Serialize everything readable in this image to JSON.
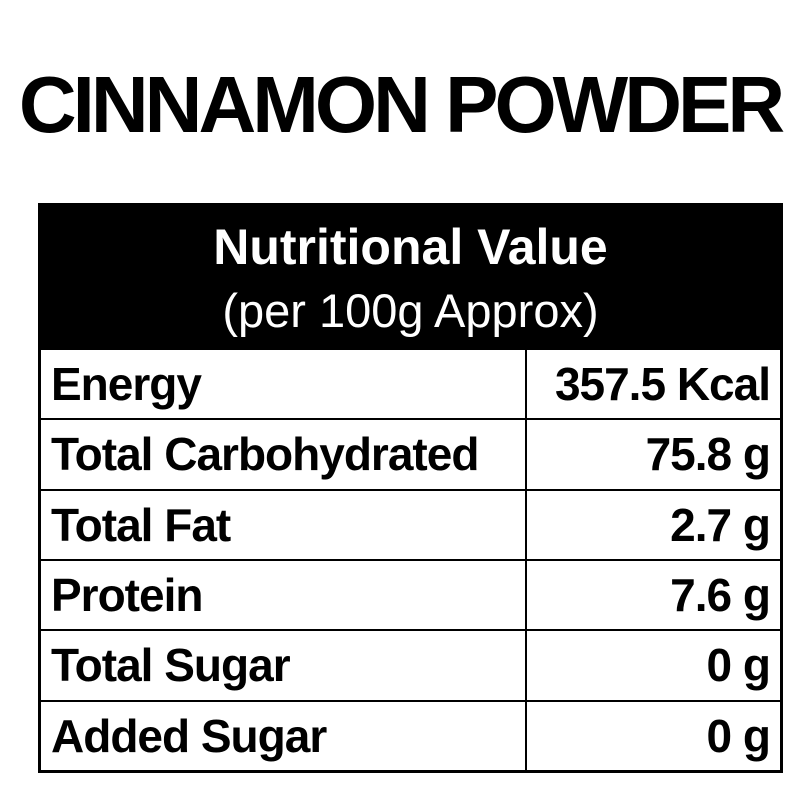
{
  "page": {
    "title": "CINNAMON POWDER"
  },
  "table": {
    "header": {
      "title": "Nutritional Value",
      "subtitle": "(per 100g Approx)"
    },
    "rows": [
      {
        "label": "Energy",
        "value": "357.5 Kcal"
      },
      {
        "label": "Total Carbohydrated",
        "value": "75.8 g"
      },
      {
        "label": "Total Fat",
        "value": "2.7 g"
      },
      {
        "label": "Protein",
        "value": "7.6 g"
      },
      {
        "label": "Total Sugar",
        "value": "0 g"
      },
      {
        "label": "Added Sugar",
        "value": "0 g"
      }
    ],
    "colors": {
      "background": "#ffffff",
      "header_bg": "#000000",
      "header_text": "#ffffff",
      "border": "#000000",
      "text": "#000000"
    }
  }
}
